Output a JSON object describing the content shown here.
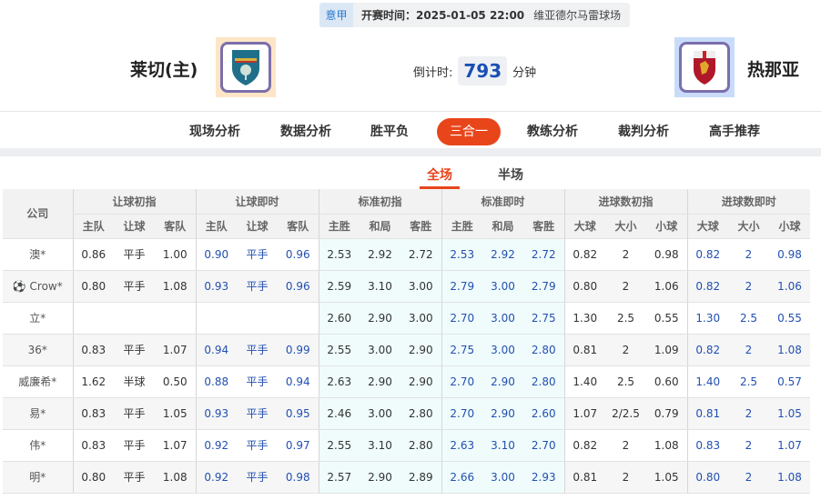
{
  "match": {
    "league": "意甲",
    "time_label": "开赛时间：",
    "time": "2025-01-05 22:00",
    "venue": "维亚德尔马雷球场",
    "home": "莱切(主)",
    "away": "热那亚",
    "countdown_label": "倒计时:",
    "countdown": "793",
    "countdown_unit": "分钟",
    "home_logo_bg": "#fde6c6",
    "away_logo_bg": "#c8dcfa"
  },
  "nav": {
    "items": [
      "现场分析",
      "数据分析",
      "胜平负",
      "三合一",
      "教练分析",
      "裁判分析",
      "高手推荐"
    ],
    "active": 3,
    "accent": "#e8451b"
  },
  "subtabs": {
    "items": [
      "全场",
      "半场"
    ],
    "active": 0
  },
  "table": {
    "company_header": "公司",
    "groups": [
      "让球初指",
      "让球即时",
      "标准初指",
      "标准即时",
      "进球数初指",
      "进球数即时"
    ],
    "subheaders": [
      "主队",
      "让球",
      "客队",
      "主队",
      "让球",
      "客队",
      "主胜",
      "和局",
      "客胜",
      "主胜",
      "和局",
      "客胜",
      "大球",
      "大小",
      "小球",
      "大球",
      "大小",
      "小球"
    ],
    "rows": [
      {
        "company": "澳*",
        "cells": [
          "0.86",
          "平手",
          "1.00",
          "0.90",
          "平手",
          "0.96",
          "2.53",
          "2.92",
          "2.72",
          "2.53",
          "2.92",
          "2.72",
          "0.82",
          "2",
          "0.98",
          "0.82",
          "2",
          "0.98"
        ]
      },
      {
        "company": "Crow*",
        "icon": "soccer-ball-icon",
        "cells": [
          "0.80",
          "平手",
          "1.08",
          "0.93",
          "平手",
          "0.96",
          "2.59",
          "3.10",
          "3.00",
          "2.79",
          "3.00",
          "2.79",
          "0.80",
          "2",
          "1.06",
          "0.82",
          "2",
          "1.06"
        ]
      },
      {
        "company": "立*",
        "cells": [
          "",
          "",
          "",
          "",
          "",
          "",
          "2.60",
          "2.90",
          "3.00",
          "2.70",
          "3.00",
          "2.75",
          "1.30",
          "2.5",
          "0.55",
          "1.30",
          "2.5",
          "0.55"
        ]
      },
      {
        "company": "36*",
        "cells": [
          "0.83",
          "平手",
          "1.07",
          "0.94",
          "平手",
          "0.99",
          "2.55",
          "3.00",
          "2.90",
          "2.75",
          "3.00",
          "2.80",
          "0.81",
          "2",
          "1.09",
          "0.82",
          "2",
          "1.08"
        ]
      },
      {
        "company": "威廉希*",
        "cells": [
          "1.62",
          "半球",
          "0.50",
          "0.88",
          "平手",
          "0.94",
          "2.63",
          "2.90",
          "2.90",
          "2.70",
          "2.90",
          "2.80",
          "1.40",
          "2.5",
          "0.60",
          "1.40",
          "2.5",
          "0.57"
        ]
      },
      {
        "company": "易*",
        "cells": [
          "0.83",
          "平手",
          "1.05",
          "0.93",
          "平手",
          "0.95",
          "2.46",
          "3.00",
          "2.80",
          "2.70",
          "2.90",
          "2.60",
          "1.07",
          "2/2.5",
          "0.79",
          "0.81",
          "2",
          "1.05"
        ]
      },
      {
        "company": "伟*",
        "cells": [
          "0.83",
          "平手",
          "1.07",
          "0.92",
          "平手",
          "0.97",
          "2.55",
          "3.10",
          "2.80",
          "2.63",
          "3.10",
          "2.70",
          "0.82",
          "2",
          "1.08",
          "0.83",
          "2",
          "1.07"
        ]
      },
      {
        "company": "明*",
        "cells": [
          "0.80",
          "平手",
          "1.08",
          "0.92",
          "平手",
          "0.98",
          "2.57",
          "2.90",
          "2.89",
          "2.66",
          "3.00",
          "2.93",
          "0.81",
          "2",
          "1.05",
          "0.80",
          "2",
          "1.08"
        ]
      }
    ]
  }
}
